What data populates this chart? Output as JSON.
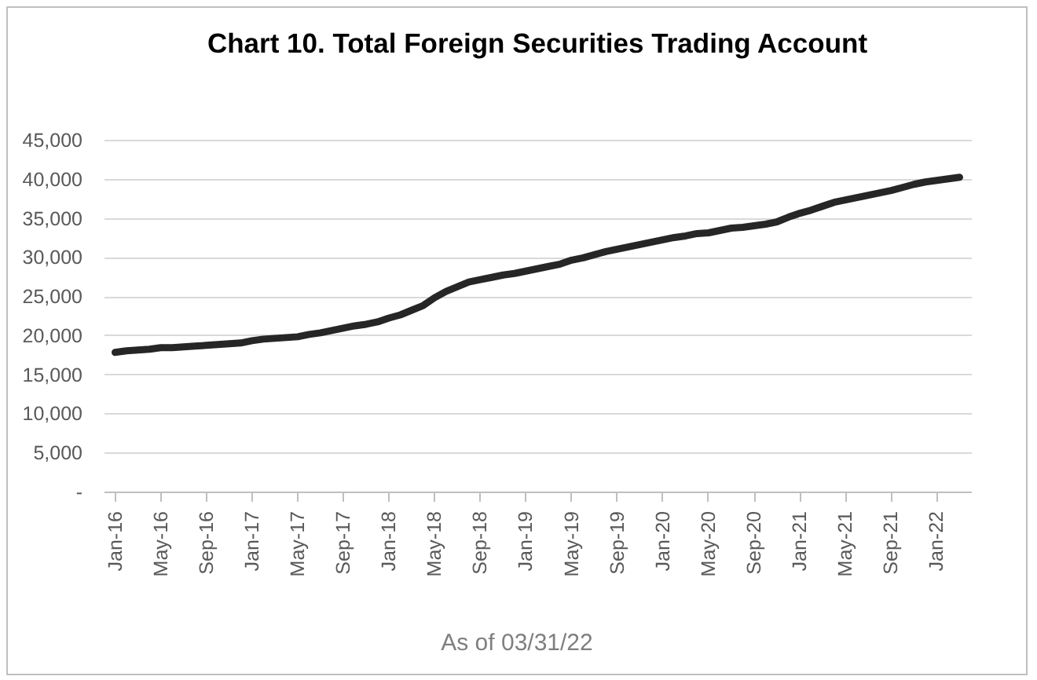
{
  "chart_data": {
    "type": "line",
    "title": "Chart 10. Total Foreign Securities Trading Account",
    "categories": [
      "Jan-16",
      null,
      null,
      null,
      "May-16",
      null,
      null,
      null,
      "Sep-16",
      null,
      null,
      null,
      "Jan-17",
      null,
      null,
      null,
      "May-17",
      null,
      null,
      null,
      "Sep-17",
      null,
      null,
      null,
      "Jan-18",
      null,
      null,
      null,
      "May-18",
      null,
      null,
      null,
      "Sep-18",
      null,
      null,
      null,
      "Jan-19",
      null,
      null,
      null,
      "May-19",
      null,
      null,
      null,
      "Sep-19",
      null,
      null,
      null,
      "Jan-20",
      null,
      null,
      null,
      "May-20",
      null,
      null,
      null,
      "Sep-20",
      null,
      null,
      null,
      "Jan-21",
      null,
      null,
      null,
      "May-21",
      null,
      null,
      null,
      "Sep-21",
      null,
      null,
      null,
      "Jan-22",
      null,
      null
    ],
    "series": [
      {
        "color": "#262626",
        "values": [
          17800,
          18000,
          18100,
          18200,
          18400,
          18400,
          18500,
          18600,
          18700,
          18800,
          18900,
          19000,
          19300,
          19500,
          19600,
          19700,
          19800,
          20100,
          20300,
          20600,
          20900,
          21200,
          21400,
          21700,
          22200,
          22600,
          23200,
          23800,
          24800,
          25600,
          26200,
          26800,
          27100,
          27400,
          27700,
          27900,
          28200,
          28500,
          28800,
          29100,
          29600,
          29900,
          30300,
          30700,
          31000,
          31300,
          31600,
          31900,
          32200,
          32500,
          32700,
          33000,
          33100,
          33400,
          33700,
          33800,
          34000,
          34200,
          34500,
          35100,
          35600,
          36000,
          36500,
          37000,
          37300,
          37600,
          37900,
          38200,
          38500,
          38900,
          39300,
          39600,
          39800,
          40000,
          40200
        ]
      }
    ],
    "ylim": [
      0,
      45000
    ],
    "yticks": [
      {
        "value": 0,
        "label": "-"
      },
      {
        "value": 5000,
        "label": "5,000"
      },
      {
        "value": 10000,
        "label": "10,000"
      },
      {
        "value": 15000,
        "label": "15,000"
      },
      {
        "value": 20000,
        "label": "20,000"
      },
      {
        "value": 25000,
        "label": "25,000"
      },
      {
        "value": 30000,
        "label": "30,000"
      },
      {
        "value": 35000,
        "label": "35,000"
      },
      {
        "value": 40000,
        "label": "40,000"
      },
      {
        "value": 45000,
        "label": "45,000"
      }
    ],
    "grid": "y",
    "legend": false,
    "annotations": [
      "As of 03/31/22"
    ]
  }
}
